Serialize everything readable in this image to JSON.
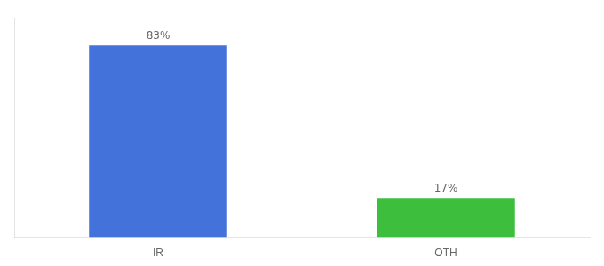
{
  "chart_data": {
    "type": "bar",
    "categories": [
      "IR",
      "OTH"
    ],
    "values": [
      83,
      17
    ],
    "value_labels": [
      "83%",
      "17%"
    ],
    "colors": [
      "#4472db",
      "#3dbf3d"
    ],
    "ylim": [
      0,
      95
    ],
    "data_labels": true,
    "tick_labels": "x",
    "grid": false
  }
}
